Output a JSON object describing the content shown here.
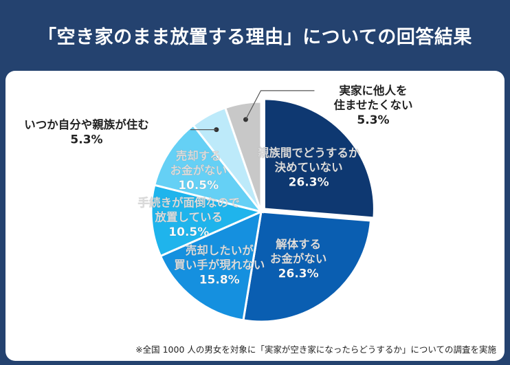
{
  "header": {
    "title": "「空き家のまま放置する理由」についての回答結果"
  },
  "footnote": "※全国 1000 人の男女を対象に「実家が空き家になったらどうするか」についての調査を実施",
  "chart_data": {
    "type": "pie",
    "title": "「空き家のまま放置する理由」についての回答結果",
    "start_angle_deg": 0,
    "direction": "clockwise",
    "slices": [
      {
        "label": [
          "親族間でどうするか",
          "決めていない"
        ],
        "value": 26.3,
        "value_label": "26.3%",
        "color": "#0e3871",
        "text_color": "#ffffff",
        "exploded": true
      },
      {
        "label": [
          "解体する",
          "お金がない"
        ],
        "value": 26.3,
        "value_label": "26.3%",
        "color": "#0a5eb1",
        "text_color": "#ffffff",
        "exploded": false
      },
      {
        "label": [
          "売却したいが",
          "買い手が現れない"
        ],
        "value": 15.8,
        "value_label": "15.8%",
        "color": "#1590df",
        "text_color": "#ffffff",
        "exploded": false
      },
      {
        "label": [
          "手続きが面倒なので",
          "放置している"
        ],
        "value": 10.5,
        "value_label": "10.5%",
        "color": "#1fb4ec",
        "text_color": "#ffffff",
        "exploded": false
      },
      {
        "label": [
          "売却する",
          "お金がない"
        ],
        "value": 10.5,
        "value_label": "10.5%",
        "color": "#65d0f5",
        "text_color": "#ffffff",
        "exploded": false
      },
      {
        "label": [
          "いつか自分や親族が住む"
        ],
        "value": 5.3,
        "value_label": "5.3%",
        "color": "#bdeafa",
        "text_color": "#222222",
        "exploded": false,
        "callout": "left"
      },
      {
        "label": [
          "実家に他人を",
          "住ませたくない"
        ],
        "value": 5.3,
        "value_label": "5.3%",
        "color": "#c8c8c8",
        "text_color": "#222222",
        "exploded": false,
        "callout": "right"
      }
    ]
  }
}
